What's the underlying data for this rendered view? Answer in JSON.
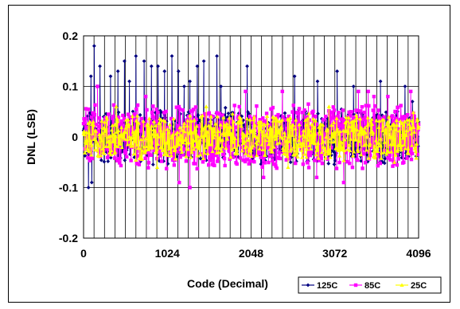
{
  "chart_data": {
    "type": "scatter",
    "xlabel": "Code (Decimal)",
    "ylabel": "DNL (LSB)",
    "xlim": [
      0,
      4096
    ],
    "ylim": [
      -0.2,
      0.2
    ],
    "x_ticks": [
      0,
      1024,
      2048,
      3072,
      4096
    ],
    "x_tick_labels": [
      "0",
      "1024",
      "2048",
      "3072",
      "4096"
    ],
    "y_ticks": [
      -0.2,
      -0.1,
      0,
      0.1,
      0.2
    ],
    "y_tick_labels": [
      "-0.2",
      "-0.1",
      "0",
      "0.1",
      "0.2"
    ],
    "grid": "vertical and horizontal major gridlines",
    "legend_position": "bottom-right",
    "series": [
      {
        "name": "125C",
        "color": "#000080",
        "marker": "diamond",
        "typical_range": [
          -0.06,
          0.06
        ],
        "spikes": [
          [
            60,
            -0.1
          ],
          [
            100,
            -0.09
          ],
          [
            90,
            0.12
          ],
          [
            130,
            0.18
          ],
          [
            200,
            0.14
          ],
          [
            330,
            0.12
          ],
          [
            420,
            0.13
          ],
          [
            500,
            0.15
          ],
          [
            560,
            0.11
          ],
          [
            640,
            0.16
          ],
          [
            740,
            0.15
          ],
          [
            830,
            0.14
          ],
          [
            910,
            0.14
          ],
          [
            990,
            0.13
          ],
          [
            1080,
            0.16
          ],
          [
            1160,
            0.13
          ],
          [
            1230,
            0.1
          ],
          [
            1300,
            0.11
          ],
          [
            1390,
            0.14
          ],
          [
            1470,
            0.15
          ],
          [
            1630,
            0.16
          ],
          [
            1680,
            0.1
          ],
          [
            2000,
            0.14
          ],
          [
            3100,
            0.13
          ],
          [
            2580,
            0.12
          ],
          [
            2860,
            0.11
          ],
          [
            3630,
            0.11
          ],
          [
            3930,
            0.1
          ],
          [
            4020,
            0.07
          ],
          [
            3300,
            0.1
          ]
        ]
      },
      {
        "name": "85C",
        "color": "#FF00FF",
        "marker": "square",
        "typical_range": [
          -0.07,
          0.07
        ],
        "spikes": [
          [
            170,
            0.1
          ],
          [
            1300,
            -0.1
          ],
          [
            1170,
            -0.09
          ],
          [
            2430,
            0.09
          ],
          [
            3180,
            -0.09
          ],
          [
            3360,
            0.09
          ],
          [
            3480,
            0.09
          ],
          [
            3720,
            0.08
          ],
          [
            2200,
            -0.08
          ],
          [
            1980,
            0.09
          ],
          [
            760,
            0.08
          ],
          [
            2850,
            -0.08
          ],
          [
            3550,
            0.08
          ],
          [
            4000,
            0.09
          ]
        ]
      },
      {
        "name": "25C",
        "color": "#FFFF00",
        "marker": "triangle",
        "typical_range": [
          -0.05,
          0.05
        ],
        "spikes": [
          [
            400,
            0.06
          ],
          [
            900,
            -0.06
          ],
          [
            1500,
            0.06
          ],
          [
            2500,
            -0.06
          ],
          [
            3000,
            0.06
          ],
          [
            3800,
            -0.05
          ]
        ]
      }
    ]
  }
}
